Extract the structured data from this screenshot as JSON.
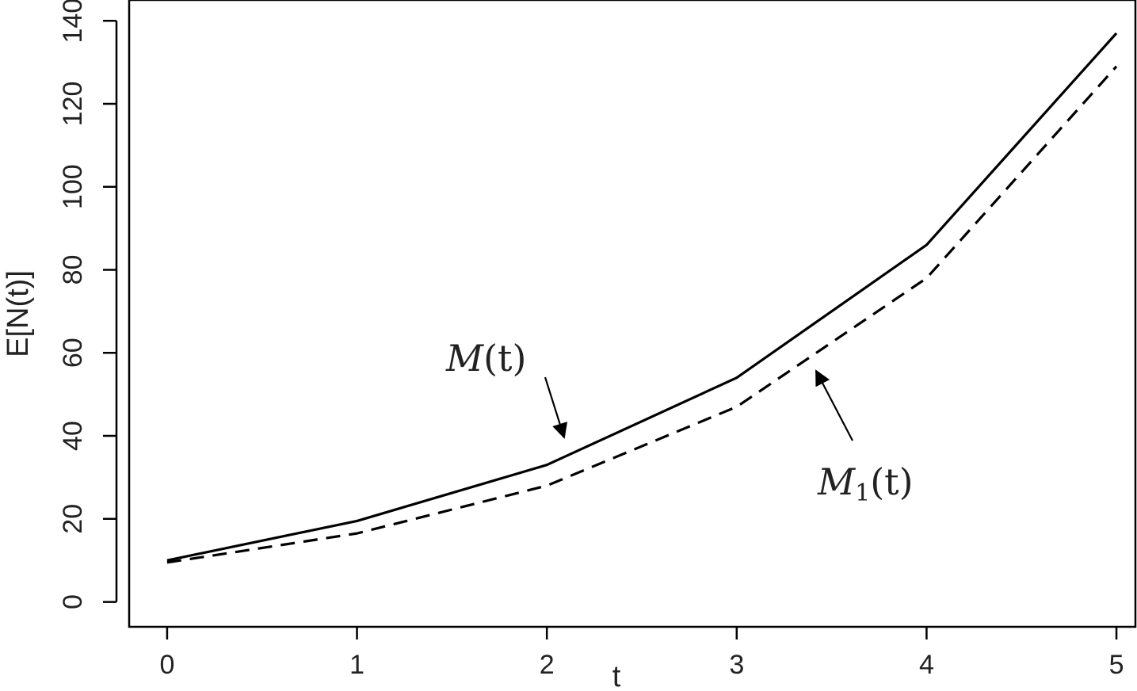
{
  "chart_data": {
    "type": "line",
    "title": "",
    "xlabel": "t",
    "ylabel": "E[N(t)]",
    "xlim": [
      -0.2,
      5.1
    ],
    "ylim": [
      -6,
      145
    ],
    "xticks": [
      "0",
      "1",
      "2",
      "3",
      "4",
      "5"
    ],
    "yticks": [
      "0",
      "20",
      "40",
      "60",
      "80",
      "100",
      "120",
      "140"
    ],
    "grid": false,
    "x": [
      0,
      1,
      2,
      3,
      4,
      5
    ],
    "series": [
      {
        "values": [
          10,
          19.5,
          33,
          54,
          86,
          137
        ],
        "style": "solid",
        "color": "#000000"
      },
      {
        "values": [
          9.5,
          16.5,
          28,
          47,
          78,
          129
        ],
        "style": "dashed",
        "color": "#000000"
      }
    ],
    "annotations": [
      {
        "main": "M",
        "sub": "",
        "rest": "(t)",
        "points_to_series": 0,
        "target": [
          2.13,
          39
        ]
      },
      {
        "main": "M",
        "sub": "1",
        "rest": "(t)",
        "points_to_series": 1,
        "target": [
          3.47,
          56
        ]
      }
    ]
  }
}
